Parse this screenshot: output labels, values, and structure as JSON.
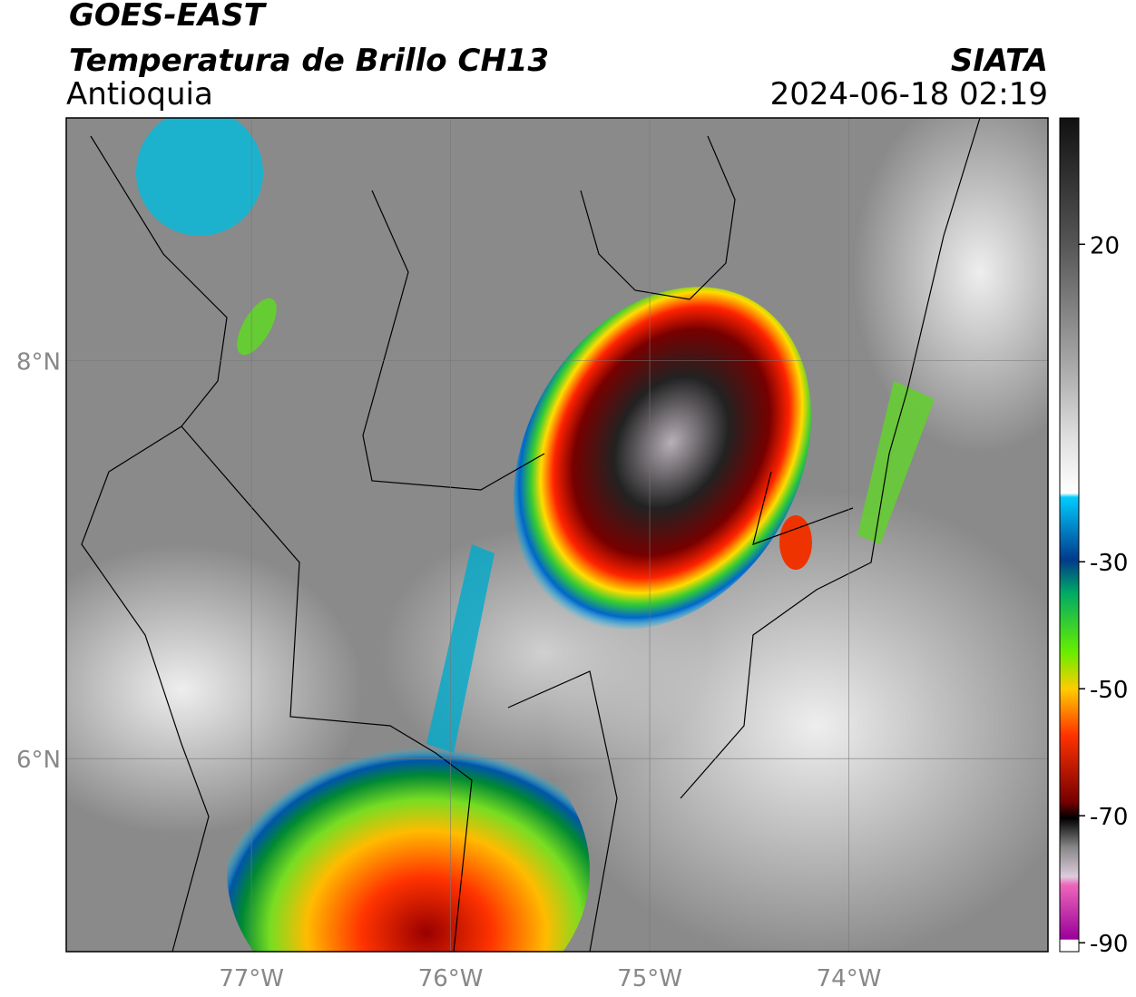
{
  "header": {
    "satellite": "GOES-EAST",
    "product": "Temperatura de Brillo CH13",
    "region": "Antioquia",
    "source": "SIATA",
    "datetime": "2024-06-18 02:19"
  },
  "map": {
    "xlim": [
      -77.93,
      -73.0
    ],
    "ylim": [
      5.03,
      9.22
    ],
    "xticks": [
      {
        "value": -77,
        "label": "77°W"
      },
      {
        "value": -76,
        "label": "76°W"
      },
      {
        "value": -75,
        "label": "75°W"
      },
      {
        "value": -74,
        "label": "74°W"
      }
    ],
    "yticks": [
      {
        "value": 6,
        "label": "6°N"
      },
      {
        "value": 8,
        "label": "8°N"
      }
    ],
    "grid": true
  },
  "colorbar": {
    "ylim": [
      -91.4,
      39.9
    ],
    "yticks": [
      -90,
      -70,
      -50,
      -30,
      20
    ]
  }
}
